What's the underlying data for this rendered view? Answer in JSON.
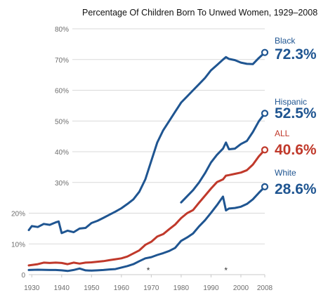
{
  "colors": {
    "blue": "#1f5591",
    "red": "#c0392b",
    "grid": "#d9d9d9",
    "tick": "#6d6d6d"
  },
  "chart_data": {
    "type": "line",
    "title": "Percentage Of Children Born To Unwed Women, 1929–2008",
    "xlabel": "",
    "ylabel": "",
    "xlim": [
      1929,
      2008
    ],
    "ylim": [
      0,
      80
    ],
    "grid": true,
    "x_ticks": [
      "1930",
      "1940",
      "1950",
      "1960",
      "1970",
      "1980",
      "1990",
      "2000",
      "2008"
    ],
    "y_ticks": [
      "0",
      "10%",
      "20%",
      "30%",
      "40%",
      "50%",
      "60%",
      "70%",
      "80%"
    ],
    "annotations": [
      "*",
      "*"
    ],
    "annotation_years": [
      1969,
      1995
    ],
    "series": [
      {
        "name": "Black",
        "end_label": "72.3%",
        "color": "#1f5591",
        "points": [
          [
            1929,
            14.5
          ],
          [
            1930,
            15.8
          ],
          [
            1932,
            15.5
          ],
          [
            1934,
            16.5
          ],
          [
            1936,
            16.2
          ],
          [
            1938,
            17.0
          ],
          [
            1939,
            17.3
          ],
          [
            1940,
            13.5
          ],
          [
            1942,
            14.3
          ],
          [
            1944,
            13.8
          ],
          [
            1946,
            15.0
          ],
          [
            1948,
            15.2
          ],
          [
            1950,
            16.8
          ],
          [
            1952,
            17.5
          ],
          [
            1954,
            18.5
          ],
          [
            1956,
            19.5
          ],
          [
            1958,
            20.5
          ],
          [
            1960,
            21.6
          ],
          [
            1962,
            23.0
          ],
          [
            1964,
            24.5
          ],
          [
            1966,
            27.0
          ],
          [
            1968,
            31.0
          ],
          [
            1970,
            37.0
          ],
          [
            1972,
            43.0
          ],
          [
            1974,
            47.0
          ],
          [
            1976,
            50.0
          ],
          [
            1978,
            53.0
          ],
          [
            1980,
            56.0
          ],
          [
            1982,
            58.0
          ],
          [
            1984,
            60.0
          ],
          [
            1986,
            62.0
          ],
          [
            1988,
            64.0
          ],
          [
            1990,
            66.5
          ],
          [
            1992,
            68.2
          ],
          [
            1994,
            70.0
          ],
          [
            1995,
            70.8
          ],
          [
            1996,
            70.2
          ],
          [
            1998,
            69.8
          ],
          [
            2000,
            69.0
          ],
          [
            2002,
            68.6
          ],
          [
            2004,
            68.5
          ],
          [
            2006,
            70.5
          ],
          [
            2008,
            72.3
          ]
        ]
      },
      {
        "name": "Hispanic",
        "end_label": "52.5%",
        "color": "#1f5591",
        "points": [
          [
            1980,
            23.5
          ],
          [
            1982,
            25.5
          ],
          [
            1984,
            27.5
          ],
          [
            1986,
            30.0
          ],
          [
            1988,
            33.0
          ],
          [
            1990,
            36.5
          ],
          [
            1992,
            39.0
          ],
          [
            1994,
            41.0
          ],
          [
            1995,
            43.0
          ],
          [
            1996,
            40.8
          ],
          [
            1998,
            41.0
          ],
          [
            2000,
            42.5
          ],
          [
            2002,
            43.5
          ],
          [
            2004,
            46.4
          ],
          [
            2006,
            49.9
          ],
          [
            2008,
            52.5
          ]
        ]
      },
      {
        "name": "ALL",
        "end_label": "40.6%",
        "color": "#c0392b",
        "points": [
          [
            1929,
            3.0
          ],
          [
            1932,
            3.4
          ],
          [
            1934,
            3.9
          ],
          [
            1936,
            3.8
          ],
          [
            1938,
            3.9
          ],
          [
            1940,
            3.8
          ],
          [
            1942,
            3.4
          ],
          [
            1944,
            3.9
          ],
          [
            1946,
            3.6
          ],
          [
            1948,
            3.9
          ],
          [
            1950,
            4.0
          ],
          [
            1952,
            4.2
          ],
          [
            1954,
            4.4
          ],
          [
            1956,
            4.7
          ],
          [
            1958,
            5.0
          ],
          [
            1960,
            5.3
          ],
          [
            1962,
            5.9
          ],
          [
            1964,
            6.9
          ],
          [
            1966,
            7.9
          ],
          [
            1968,
            9.7
          ],
          [
            1970,
            10.7
          ],
          [
            1972,
            12.4
          ],
          [
            1974,
            13.2
          ],
          [
            1976,
            14.8
          ],
          [
            1978,
            16.3
          ],
          [
            1980,
            18.4
          ],
          [
            1982,
            20.0
          ],
          [
            1984,
            21.0
          ],
          [
            1986,
            23.4
          ],
          [
            1988,
            25.7
          ],
          [
            1990,
            28.0
          ],
          [
            1992,
            30.1
          ],
          [
            1994,
            31.0
          ],
          [
            1995,
            32.2
          ],
          [
            1996,
            32.4
          ],
          [
            1998,
            32.8
          ],
          [
            2000,
            33.2
          ],
          [
            2002,
            34.0
          ],
          [
            2004,
            35.8
          ],
          [
            2006,
            38.5
          ],
          [
            2008,
            40.6
          ]
        ]
      },
      {
        "name": "White",
        "end_label": "28.6%",
        "color": "#1f5591",
        "points": [
          [
            1929,
            1.5
          ],
          [
            1932,
            1.6
          ],
          [
            1936,
            1.5
          ],
          [
            1938,
            1.5
          ],
          [
            1940,
            1.4
          ],
          [
            1942,
            1.2
          ],
          [
            1944,
            1.5
          ],
          [
            1946,
            2.0
          ],
          [
            1948,
            1.4
          ],
          [
            1950,
            1.3
          ],
          [
            1952,
            1.4
          ],
          [
            1954,
            1.5
          ],
          [
            1956,
            1.7
          ],
          [
            1958,
            1.8
          ],
          [
            1960,
            2.3
          ],
          [
            1962,
            2.8
          ],
          [
            1964,
            3.4
          ],
          [
            1966,
            4.4
          ],
          [
            1968,
            5.3
          ],
          [
            1970,
            5.7
          ],
          [
            1972,
            6.4
          ],
          [
            1974,
            7.0
          ],
          [
            1976,
            7.7
          ],
          [
            1978,
            8.7
          ],
          [
            1980,
            11.0
          ],
          [
            1982,
            12.1
          ],
          [
            1984,
            13.4
          ],
          [
            1986,
            15.7
          ],
          [
            1988,
            17.7
          ],
          [
            1990,
            20.1
          ],
          [
            1992,
            22.6
          ],
          [
            1994,
            25.4
          ],
          [
            1995,
            20.9
          ],
          [
            1996,
            21.5
          ],
          [
            1998,
            21.7
          ],
          [
            2000,
            22.1
          ],
          [
            2002,
            23.0
          ],
          [
            2004,
            24.5
          ],
          [
            2006,
            26.6
          ],
          [
            2008,
            28.6
          ]
        ]
      }
    ]
  }
}
